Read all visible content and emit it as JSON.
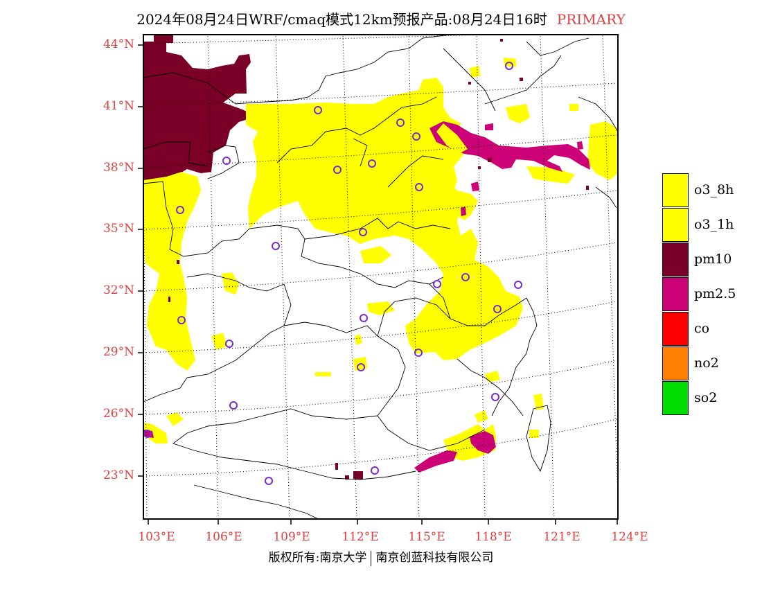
{
  "title": {
    "main": "2024年08月24日WRF/cmaq模式12km预报产品:08月24日16时",
    "tag": "PRIMARY"
  },
  "map": {
    "lat_labels": [
      "44°N",
      "41°N",
      "38°N",
      "35°N",
      "32°N",
      "29°N",
      "26°N",
      "23°N"
    ],
    "lon_labels": [
      "103°E",
      "106°E",
      "109°E",
      "112°E",
      "115°E",
      "118°E",
      "121°E",
      "124°E"
    ]
  },
  "legend": [
    {
      "label": "o3_8h",
      "color": "#ffff00"
    },
    {
      "label": "o3_1h",
      "color": "#ffff00"
    },
    {
      "label": "pm10",
      "color": "#7a0028"
    },
    {
      "label": "pm2.5",
      "color": "#cc0077"
    },
    {
      "label": "co",
      "color": "#ff0000"
    },
    {
      "label": "no2",
      "color": "#ff8000"
    },
    {
      "label": "so2",
      "color": "#00dd00"
    }
  ],
  "copyright": {
    "left": "版权所有:南京大学",
    "right": "南京创蓝科技有限公司"
  },
  "colors": {
    "axis_label": "#e04040",
    "station_marker": "#7a2ad0"
  }
}
